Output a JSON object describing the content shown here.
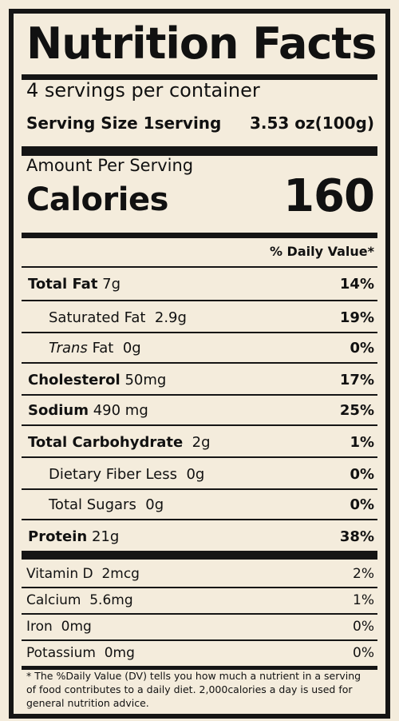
{
  "title": "Nutrition Facts",
  "servings": "4 servings per container",
  "serving_size_label": "Serving Size 1serving",
  "serving_size_value": "3.53 oz(100g)",
  "amount_label": "Amount  Per Serving",
  "calories_label": "Calories",
  "calories_value": "160",
  "daily_value_header": "% Daily Value*",
  "nutrients": [
    {
      "name": "Total Fat",
      "amount": "7g",
      "pct": "14%"
    },
    {
      "name": "Saturated Fat",
      "amount": "2.9g",
      "pct": "19%"
    },
    {
      "name": "Trans",
      "name_suffix": "Fat",
      "amount": "0g",
      "pct": "0%"
    },
    {
      "name": "Cholesterol",
      "amount": "50mg",
      "pct": "17%"
    },
    {
      "name": "Sodium",
      "amount": "490 mg",
      "pct": "25%"
    },
    {
      "name": "Total Carbohydrate",
      "amount": "2g",
      "pct": "1%"
    },
    {
      "name": "Dietary Fiber Less",
      "amount": "0g",
      "pct": "0%"
    },
    {
      "name": "Total Sugars",
      "amount": "0g",
      "pct": "0%"
    },
    {
      "name": "Protein",
      "amount": "21g",
      "pct": "38%"
    }
  ],
  "vitamins": [
    {
      "name": "Vitamin D",
      "amount": "2mcg",
      "pct": "2%"
    },
    {
      "name": "Calcium",
      "amount": "5.6mg",
      "pct": "1%"
    },
    {
      "name": "Iron",
      "amount": "0mg",
      "pct": "0%"
    },
    {
      "name": "Potassium",
      "amount": "0mg",
      "pct": "0%"
    }
  ],
  "footnote_star": "*",
  "footnote": "The %Daily Value (DV) tells you how much a nutrient in a serving of food contributes to a daily diet. 2,000calories a day is used for general nutrition advice.",
  "colors": {
    "background": "#f4ecdc",
    "ink": "#151515"
  }
}
